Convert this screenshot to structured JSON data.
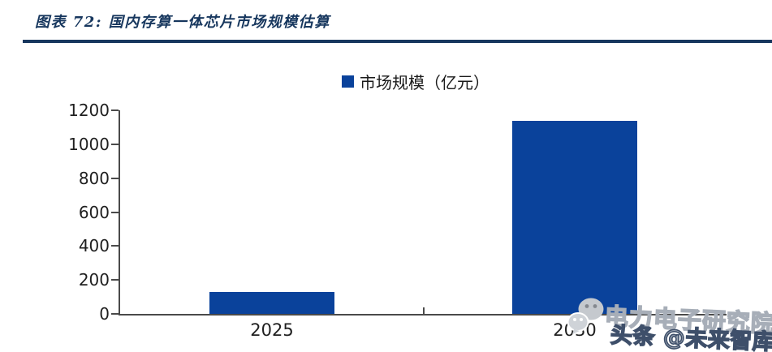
{
  "header": {
    "title": "图表 72:  国内存算一体芯片市场规模估算"
  },
  "legend": {
    "label": "市场规模（亿元）"
  },
  "chart_data": {
    "type": "bar",
    "title": "国内存算一体芯片市场规模估算",
    "categories": [
      "2025",
      "2030"
    ],
    "series": [
      {
        "name": "市场规模（亿元）",
        "values": [
          130,
          1140
        ]
      }
    ],
    "xlabel": "",
    "ylabel": "",
    "ylim": [
      0,
      1200
    ],
    "yticks": [
      0,
      200,
      400,
      600,
      800,
      1000,
      1200
    ],
    "grid": false,
    "legend_position": "top-center",
    "bar_color": "#0a429b"
  },
  "watermark": {
    "icon": "wechat-icon",
    "line1": "电力电子研究院",
    "line2": "头条 @未来智库"
  },
  "colors": {
    "bar": "#0a429b",
    "title": "#17375e",
    "rule": "#17375e",
    "axis": "#4a4a4a",
    "watermark_gray": "#a7aeb8",
    "watermark_dark": "#3e4f6a"
  }
}
